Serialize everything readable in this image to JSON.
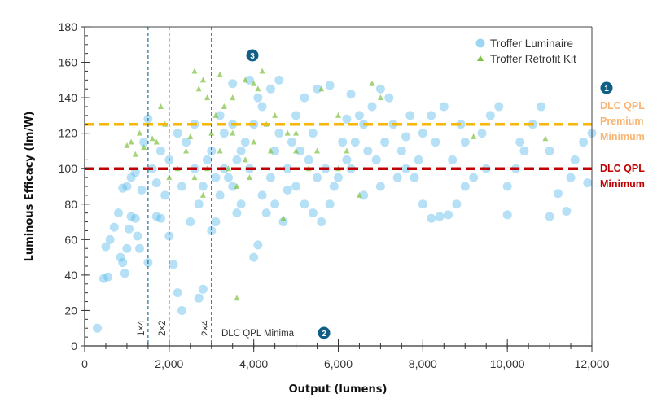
{
  "chart_data": {
    "type": "scatter",
    "xlabel": "Output (lumens)",
    "ylabel": "Luminous Efficacy (lm/W)",
    "xlim": [
      0,
      12000
    ],
    "ylim": [
      0,
      180
    ],
    "x_ticks": [
      "0",
      "2,000",
      "4,000",
      "6,000",
      "8,000",
      "10,000",
      "12,000"
    ],
    "x_tick_values": [
      0,
      2000,
      4000,
      6000,
      8000,
      10000,
      12000
    ],
    "y_ticks": [
      "0",
      "20",
      "40",
      "60",
      "80",
      "100",
      "120",
      "140",
      "160",
      "180"
    ],
    "y_tick_values": [
      0,
      20,
      40,
      60,
      80,
      100,
      120,
      140,
      160,
      180
    ],
    "grid": false,
    "legend_position": "top-right",
    "series": [
      {
        "name": "Troffer Luminaire",
        "marker": "circle",
        "color": "#5bbbeb",
        "points": [
          [
            300,
            10
          ],
          [
            450,
            38
          ],
          [
            550,
            39
          ],
          [
            500,
            56
          ],
          [
            600,
            60
          ],
          [
            700,
            67
          ],
          [
            800,
            75
          ],
          [
            850,
            50
          ],
          [
            900,
            47
          ],
          [
            950,
            41
          ],
          [
            1000,
            55
          ],
          [
            1050,
            66
          ],
          [
            1100,
            73
          ],
          [
            1200,
            72
          ],
          [
            1250,
            62
          ],
          [
            1300,
            55
          ],
          [
            1350,
            88
          ],
          [
            1000,
            90
          ],
          [
            900,
            89
          ],
          [
            1100,
            95
          ],
          [
            1200,
            98
          ],
          [
            1400,
            115
          ],
          [
            1500,
            128
          ],
          [
            1500,
            47
          ],
          [
            1700,
            73
          ],
          [
            1800,
            72
          ],
          [
            2000,
            62
          ],
          [
            2100,
            46
          ],
          [
            2200,
            30
          ],
          [
            2300,
            20
          ],
          [
            2700,
            27
          ],
          [
            2800,
            32
          ],
          [
            2500,
            70
          ],
          [
            1600,
            100
          ],
          [
            1800,
            110
          ],
          [
            2000,
            105
          ],
          [
            2200,
            120
          ],
          [
            2400,
            115
          ],
          [
            2600,
            100
          ],
          [
            2800,
            90
          ],
          [
            3000,
            65
          ],
          [
            3100,
            70
          ],
          [
            3200,
            85
          ],
          [
            3400,
            95
          ],
          [
            3600,
            105
          ],
          [
            3800,
            115
          ],
          [
            4000,
            125
          ],
          [
            4200,
            135
          ],
          [
            4400,
            145
          ],
          [
            4600,
            150
          ],
          [
            3500,
            148
          ],
          [
            3900,
            150
          ],
          [
            4100,
            140
          ],
          [
            3000,
            110
          ],
          [
            3300,
            120
          ],
          [
            3500,
            125
          ],
          [
            4500,
            110
          ],
          [
            4800,
            100
          ],
          [
            5000,
            90
          ],
          [
            5200,
            80
          ],
          [
            5400,
            75
          ],
          [
            5600,
            70
          ],
          [
            5800,
            80
          ],
          [
            6000,
            95
          ],
          [
            6200,
            105
          ],
          [
            6400,
            115
          ],
          [
            6600,
            125
          ],
          [
            6800,
            135
          ],
          [
            7000,
            145
          ],
          [
            7200,
            140
          ],
          [
            5000,
            130
          ],
          [
            5200,
            140
          ],
          [
            5500,
            145
          ],
          [
            5800,
            147
          ],
          [
            6300,
            142
          ],
          [
            6500,
            130
          ],
          [
            4200,
            85
          ],
          [
            4000,
            50
          ],
          [
            4100,
            57
          ],
          [
            4700,
            70
          ],
          [
            4300,
            75
          ],
          [
            3700,
            80
          ],
          [
            3500,
            90
          ],
          [
            3300,
            100
          ],
          [
            7500,
            110
          ],
          [
            7600,
            100
          ],
          [
            7800,
            95
          ],
          [
            8000,
            120
          ],
          [
            8200,
            130
          ],
          [
            8500,
            135
          ],
          [
            8000,
            80
          ],
          [
            8200,
            72
          ],
          [
            8400,
            73
          ],
          [
            8600,
            74
          ],
          [
            8800,
            80
          ],
          [
            9000,
            90
          ],
          [
            9200,
            95
          ],
          [
            9400,
            120
          ],
          [
            9600,
            130
          ],
          [
            9800,
            135
          ],
          [
            10000,
            74
          ],
          [
            10000,
            90
          ],
          [
            10200,
            100
          ],
          [
            10400,
            110
          ],
          [
            10600,
            125
          ],
          [
            10800,
            135
          ],
          [
            11000,
            110
          ],
          [
            11200,
            86
          ],
          [
            11000,
            73
          ],
          [
            11400,
            76
          ],
          [
            11500,
            95
          ],
          [
            11600,
            105
          ],
          [
            11800,
            115
          ],
          [
            12000,
            120
          ],
          [
            11900,
            92
          ],
          [
            9000,
            115
          ],
          [
            8700,
            105
          ],
          [
            7000,
            90
          ],
          [
            6600,
            85
          ],
          [
            7300,
            125
          ],
          [
            7700,
            130
          ],
          [
            2900,
            105
          ],
          [
            3100,
            95
          ],
          [
            3700,
            110
          ],
          [
            4400,
            95
          ],
          [
            4900,
            115
          ],
          [
            5300,
            105
          ],
          [
            5700,
            100
          ],
          [
            6100,
            115
          ],
          [
            6900,
            105
          ],
          [
            7400,
            95
          ],
          [
            2600,
            125
          ],
          [
            3200,
            130
          ],
          [
            4600,
            120
          ],
          [
            5100,
            110
          ],
          [
            5900,
            90
          ],
          [
            6300,
            100
          ],
          [
            7100,
            115
          ],
          [
            2300,
            90
          ],
          [
            2700,
            80
          ],
          [
            3900,
            100
          ],
          [
            4500,
            80
          ],
          [
            5500,
            95
          ],
          [
            6700,
            110
          ],
          [
            7900,
            105
          ],
          [
            8300,
            115
          ],
          [
            8900,
            125
          ],
          [
            9500,
            100
          ],
          [
            10300,
            115
          ],
          [
            1900,
            85
          ],
          [
            1700,
            92
          ],
          [
            3600,
            75
          ],
          [
            4800,
            88
          ],
          [
            5400,
            120
          ],
          [
            6200,
            128
          ],
          [
            7600,
            118
          ]
        ]
      },
      {
        "name": "Troffer Retrofit Kit",
        "marker": "triangle",
        "color": "#7dc242",
        "points": [
          [
            1000,
            113
          ],
          [
            1100,
            115
          ],
          [
            1200,
            108
          ],
          [
            1300,
            120
          ],
          [
            1400,
            112
          ],
          [
            1700,
            115
          ],
          [
            1800,
            135
          ],
          [
            1900,
            125
          ],
          [
            2600,
            155
          ],
          [
            2700,
            145
          ],
          [
            2800,
            150
          ],
          [
            2900,
            140
          ],
          [
            3200,
            153
          ],
          [
            3500,
            140
          ],
          [
            3800,
            150
          ],
          [
            4000,
            148
          ],
          [
            4200,
            155
          ],
          [
            4100,
            145
          ],
          [
            3000,
            120
          ],
          [
            3200,
            110
          ],
          [
            3400,
            100
          ],
          [
            3600,
            90
          ],
          [
            3800,
            105
          ],
          [
            4000,
            115
          ],
          [
            4300,
            125
          ],
          [
            4500,
            130
          ],
          [
            4800,
            120
          ],
          [
            5000,
            110
          ],
          [
            5300,
            100
          ],
          [
            5600,
            145
          ],
          [
            6000,
            130
          ],
          [
            6200,
            110
          ],
          [
            6500,
            85
          ],
          [
            6800,
            148
          ],
          [
            7000,
            140
          ],
          [
            2200,
            100
          ],
          [
            2400,
            110
          ],
          [
            2600,
            95
          ],
          [
            2800,
            85
          ],
          [
            3100,
            130
          ],
          [
            3300,
            135
          ],
          [
            3600,
            27
          ],
          [
            4700,
            72
          ],
          [
            9200,
            118
          ],
          [
            10900,
            117
          ],
          [
            2000,
            95
          ],
          [
            5000,
            120
          ],
          [
            5500,
            110
          ],
          [
            6000,
            100
          ],
          [
            1600,
            117
          ],
          [
            3500,
            120
          ],
          [
            3900,
            95
          ],
          [
            4400,
            110
          ],
          [
            2500,
            118
          ],
          [
            2900,
            100
          ]
        ]
      }
    ],
    "reference_lines": [
      {
        "orientation": "horizontal",
        "y": 125,
        "label": [
          "DLC QPL",
          "Premium",
          "Minimum"
        ],
        "color": "#f5b70a",
        "label_color": "#f9b472"
      },
      {
        "orientation": "horizontal",
        "y": 100,
        "label": [
          "DLC QPL",
          "Minimum"
        ],
        "color": "#c00000",
        "label_color": "#c00000"
      },
      {
        "orientation": "vertical",
        "x": 1500,
        "label": "1×4",
        "color": "#1f6f93"
      },
      {
        "orientation": "vertical",
        "x": 2000,
        "label": "2×2",
        "color": "#1f6f93"
      },
      {
        "orientation": "vertical",
        "x": 3000,
        "label": "2×4",
        "color": "#1f6f93"
      }
    ],
    "annotations": {
      "minima_label": "DLC QPL Minima",
      "badges": [
        "1",
        "2",
        "3"
      ],
      "badge_color": "#0f5f86"
    }
  }
}
